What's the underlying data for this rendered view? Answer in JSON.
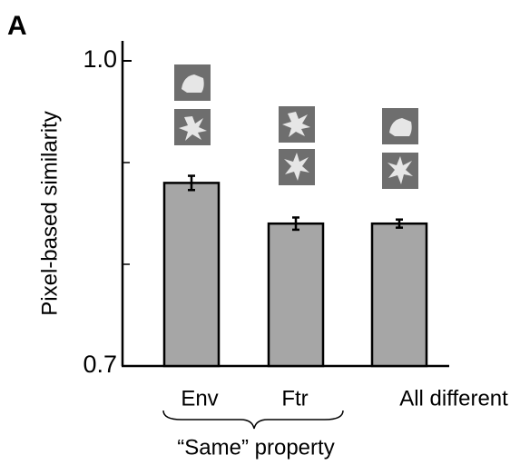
{
  "chart_data": {
    "type": "bar",
    "panel_label": "A",
    "ylabel": "Pixel-based similarity",
    "categories": [
      "Env",
      "Ftr",
      "All different"
    ],
    "values": [
      0.88,
      0.84,
      0.84
    ],
    "errors": [
      0.007,
      0.006,
      0.004
    ],
    "color": "#a6a6a6",
    "ylim": [
      0.7,
      1.0
    ],
    "yticks": [
      0.7,
      {
        "value": 1.0,
        "label": "1.0"
      }
    ],
    "yminorticks": [
      0.8,
      0.9
    ],
    "annotation": "“Same” property"
  }
}
